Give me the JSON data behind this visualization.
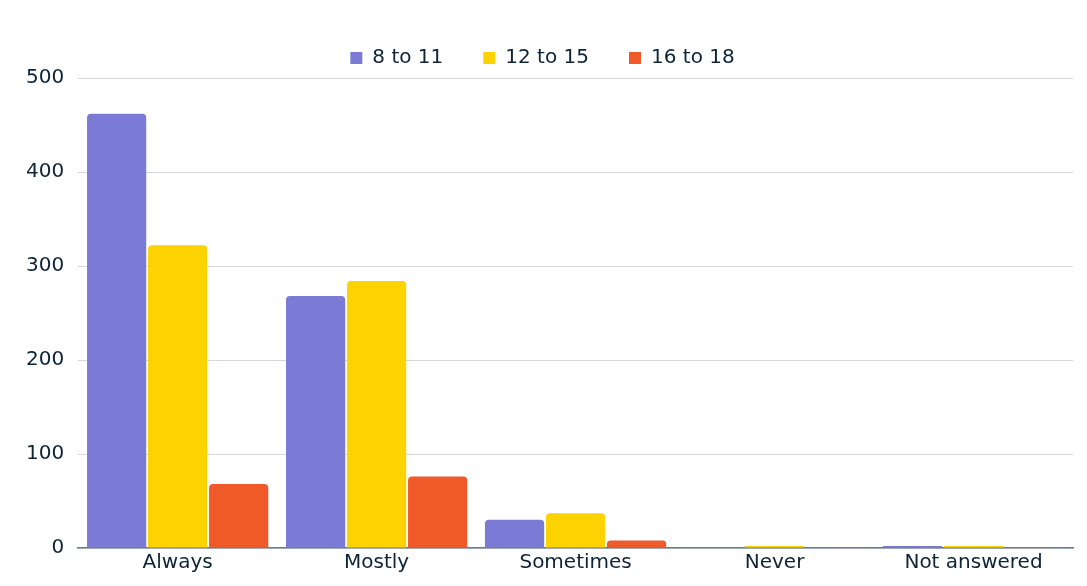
{
  "chart_data": {
    "type": "bar",
    "categories": [
      "Always",
      "Mostly",
      "Sometimes",
      "Never",
      "Not answered"
    ],
    "series": [
      {
        "name": "8 to 11",
        "color": "#7b7bd6",
        "values": [
          462,
          268,
          30,
          1,
          2
        ]
      },
      {
        "name": "12 to 15",
        "color": "#fcd200",
        "values": [
          322,
          284,
          37,
          2,
          2
        ]
      },
      {
        "name": "16 to 18",
        "color": "#f05a28",
        "values": [
          68,
          76,
          8,
          1,
          1
        ]
      }
    ],
    "ylim": [
      0,
      500
    ],
    "yticks": [
      0,
      100,
      200,
      300,
      400,
      500
    ],
    "grid": "y",
    "legend": "top"
  }
}
